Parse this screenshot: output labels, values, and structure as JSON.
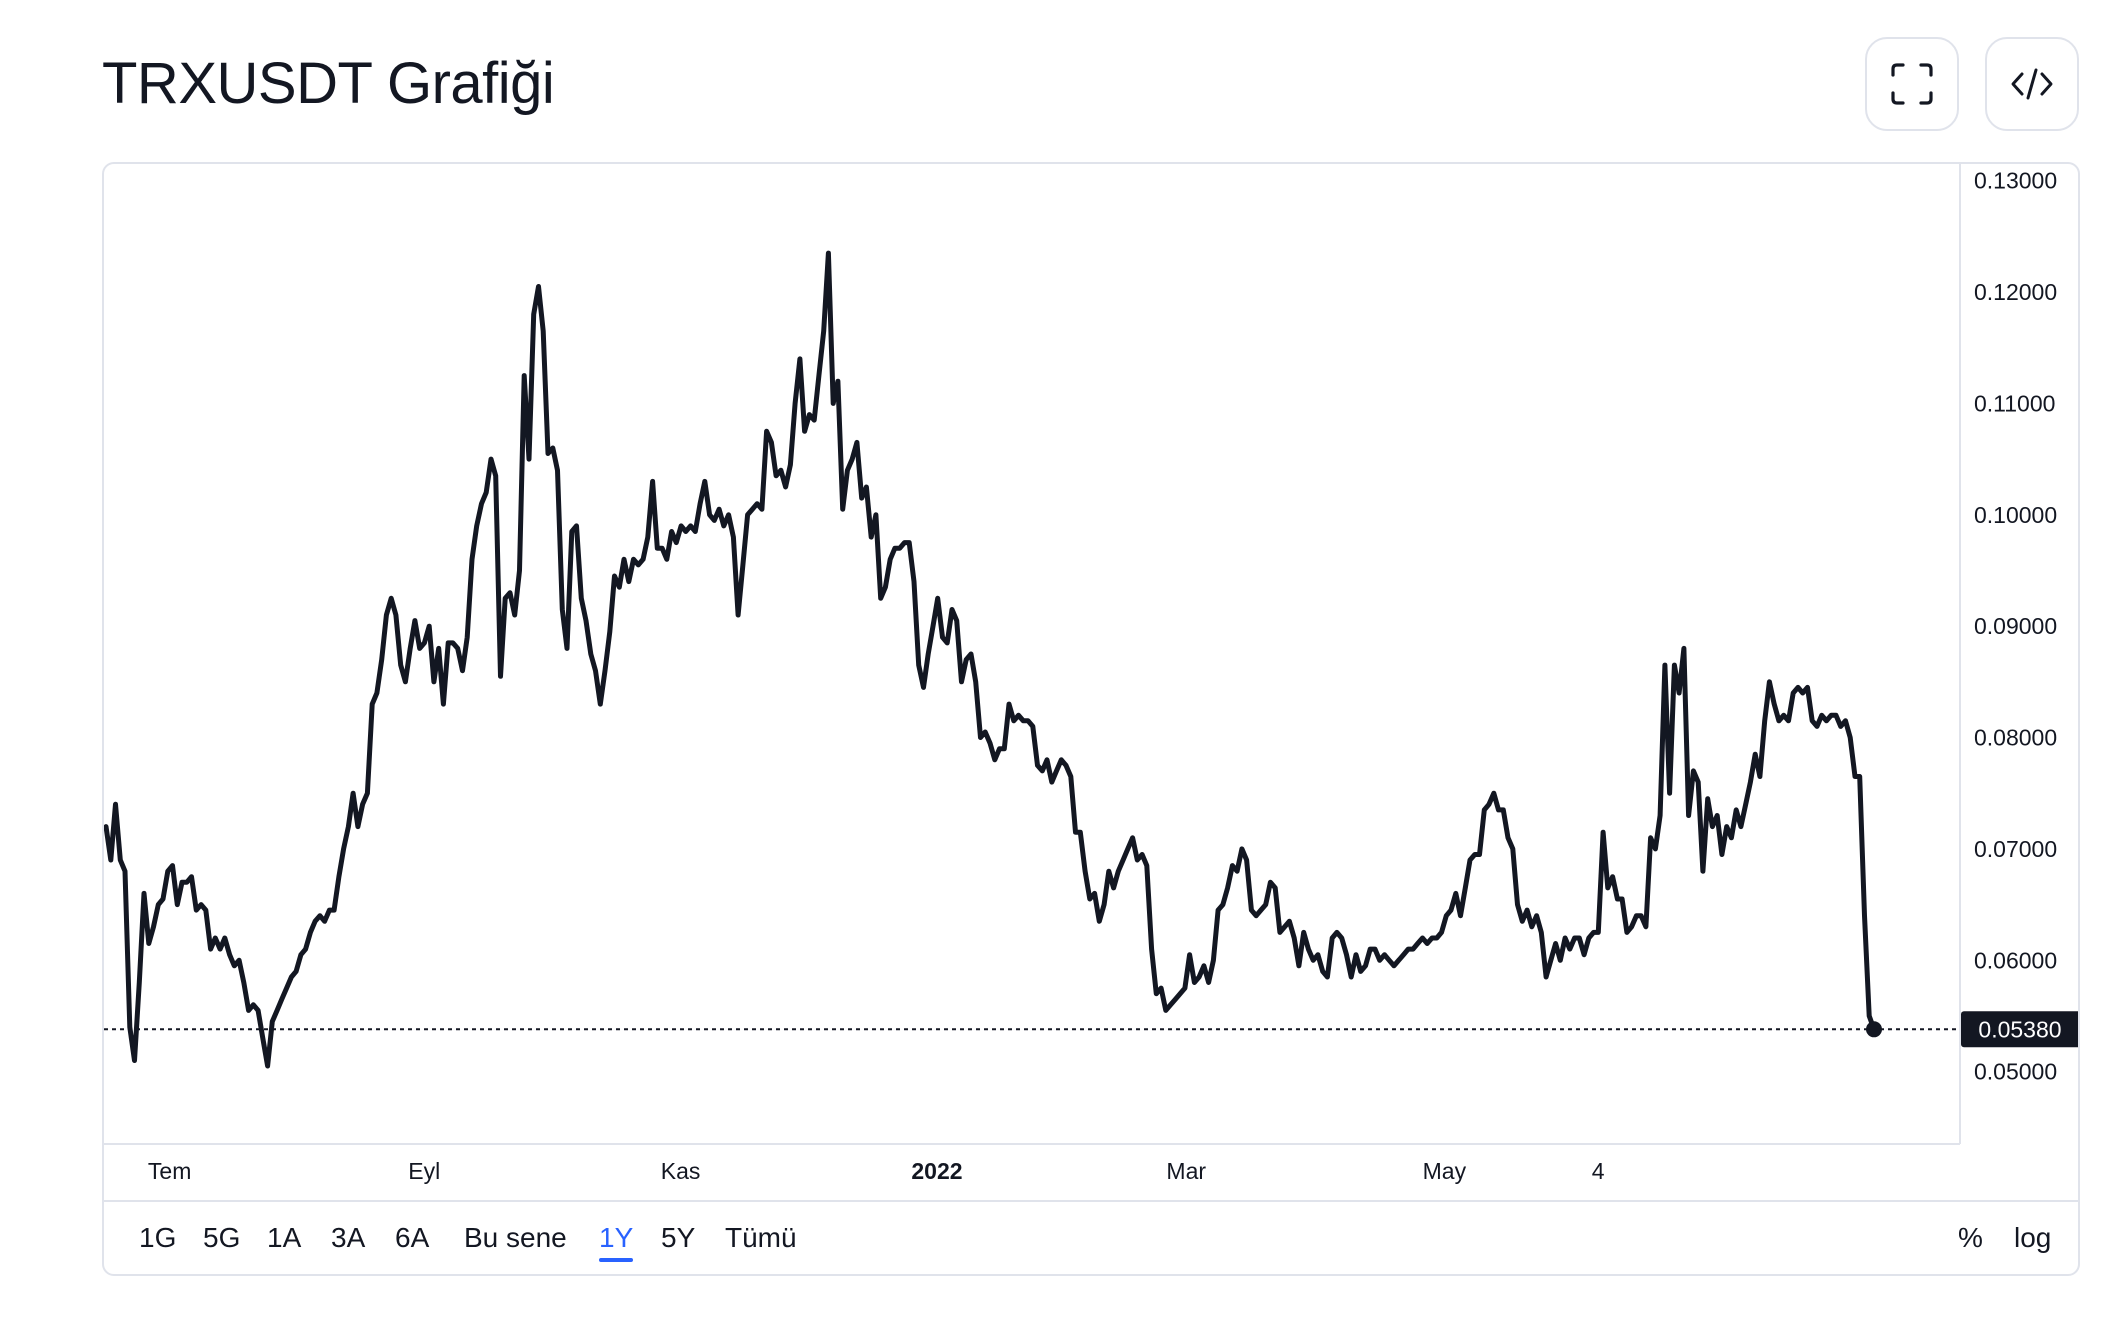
{
  "header": {
    "title": "TRXUSDT Grafiği",
    "fullscreen_icon": "fullscreen-icon",
    "embed_icon": "code-embed-icon"
  },
  "range_bar": {
    "ranges": [
      "1G",
      "5G",
      "1A",
      "3A",
      "6A",
      "Bu sene",
      "1Y",
      "5Y",
      "Tümü"
    ],
    "active": "1Y",
    "percent_label": "%",
    "log_label": "log"
  },
  "colors": {
    "line": "#131722",
    "accent": "#2962ff",
    "price_label_bg": "#131722",
    "border": "#e0e3eb"
  },
  "chart_data": {
    "type": "line",
    "symbol": "TRXUSDT",
    "x_labels": [
      "Tem",
      "Eyl",
      "Kas",
      "2022",
      "Mar",
      "May",
      "4"
    ],
    "x_labels_bold": [
      "2022"
    ],
    "y_ticks": [
      "0.13000",
      "0.12000",
      "0.11000",
      "0.10000",
      "0.09000",
      "0.08000",
      "0.07000",
      "0.06000",
      "0.05000"
    ],
    "ylim": [
      0.0435,
      0.1315
    ],
    "last_price": "0.05380",
    "last_price_value": 0.0538,
    "grid": false,
    "series": [
      {
        "values": [
          0.072,
          0.069,
          0.074,
          0.069,
          0.068,
          0.054,
          0.051,
          0.058,
          0.066,
          0.0615,
          0.063,
          0.065,
          0.0655,
          0.068,
          0.0685,
          0.065,
          0.067,
          0.067,
          0.0675,
          0.0645,
          0.065,
          0.0645,
          0.061,
          0.062,
          0.061,
          0.062,
          0.0605,
          0.0595,
          0.06,
          0.058,
          0.0555,
          0.056,
          0.0555,
          0.053,
          0.0505,
          0.0545,
          0.0555,
          0.0565,
          0.0575,
          0.0585,
          0.059,
          0.0605,
          0.061,
          0.0625,
          0.0635,
          0.064,
          0.0635,
          0.0645,
          0.0645,
          0.0675,
          0.07,
          0.072,
          0.075,
          0.072,
          0.074,
          0.075,
          0.083,
          0.084,
          0.087,
          0.091,
          0.0925,
          0.091,
          0.0865,
          0.085,
          0.088,
          0.0905,
          0.088,
          0.0885,
          0.09,
          0.085,
          0.088,
          0.083,
          0.0885,
          0.0885,
          0.088,
          0.086,
          0.089,
          0.096,
          0.099,
          0.101,
          0.102,
          0.105,
          0.1035,
          0.0855,
          0.0925,
          0.093,
          0.091,
          0.095,
          0.1125,
          0.105,
          0.118,
          0.1205,
          0.1165,
          0.1055,
          0.106,
          0.104,
          0.0915,
          0.088,
          0.0985,
          0.099,
          0.0925,
          0.0905,
          0.0875,
          0.086,
          0.083,
          0.086,
          0.0895,
          0.0945,
          0.0935,
          0.096,
          0.094,
          0.096,
          0.0955,
          0.096,
          0.098,
          0.103,
          0.097,
          0.097,
          0.096,
          0.0985,
          0.0975,
          0.099,
          0.0985,
          0.099,
          0.0985,
          0.101,
          0.103,
          0.1,
          0.0995,
          0.1005,
          0.099,
          0.1,
          0.098,
          0.091,
          0.0955,
          0.1,
          0.1005,
          0.101,
          0.1005,
          0.1075,
          0.1065,
          0.1035,
          0.104,
          0.1025,
          0.1045,
          0.11,
          0.114,
          0.1075,
          0.109,
          0.1085,
          0.1125,
          0.1165,
          0.1235,
          0.11,
          0.112,
          0.1005,
          0.104,
          0.105,
          0.1065,
          0.1015,
          0.1025,
          0.098,
          0.1,
          0.0925,
          0.0935,
          0.096,
          0.097,
          0.097,
          0.0975,
          0.0975,
          0.094,
          0.0865,
          0.0845,
          0.0875,
          0.09,
          0.0925,
          0.089,
          0.0885,
          0.0915,
          0.0905,
          0.085,
          0.087,
          0.0875,
          0.085,
          0.08,
          0.0805,
          0.0795,
          0.078,
          0.079,
          0.079,
          0.083,
          0.0815,
          0.082,
          0.0815,
          0.0815,
          0.081,
          0.0775,
          0.077,
          0.078,
          0.076,
          0.077,
          0.078,
          0.0775,
          0.0765,
          0.0715,
          0.0715,
          0.068,
          0.0655,
          0.066,
          0.0635,
          0.065,
          0.068,
          0.0665,
          0.068,
          0.069,
          0.07,
          0.071,
          0.069,
          0.0695,
          0.0685,
          0.061,
          0.057,
          0.0575,
          0.0555,
          0.056,
          0.0565,
          0.057,
          0.0575,
          0.0605,
          0.058,
          0.0585,
          0.0595,
          0.058,
          0.06,
          0.0645,
          0.065,
          0.0665,
          0.0685,
          0.068,
          0.07,
          0.069,
          0.0645,
          0.064,
          0.0645,
          0.065,
          0.067,
          0.0665,
          0.0625,
          0.063,
          0.0635,
          0.062,
          0.0595,
          0.0625,
          0.061,
          0.06,
          0.0605,
          0.059,
          0.0585,
          0.062,
          0.0625,
          0.062,
          0.0605,
          0.0585,
          0.0605,
          0.059,
          0.0595,
          0.061,
          0.061,
          0.06,
          0.0605,
          0.06,
          0.0595,
          0.06,
          0.0605,
          0.061,
          0.061,
          0.0615,
          0.062,
          0.0615,
          0.062,
          0.062,
          0.0625,
          0.064,
          0.0645,
          0.066,
          0.064,
          0.0665,
          0.069,
          0.0695,
          0.0695,
          0.0735,
          0.074,
          0.075,
          0.0735,
          0.0735,
          0.071,
          0.07,
          0.065,
          0.0635,
          0.0645,
          0.063,
          0.064,
          0.0625,
          0.0585,
          0.06,
          0.0615,
          0.06,
          0.062,
          0.061,
          0.062,
          0.062,
          0.0605,
          0.062,
          0.0625,
          0.0625,
          0.0715,
          0.0665,
          0.0675,
          0.0655,
          0.0655,
          0.0625,
          0.063,
          0.064,
          0.064,
          0.063,
          0.071,
          0.07,
          0.073,
          0.0865,
          0.075,
          0.0865,
          0.084,
          0.088,
          0.073,
          0.077,
          0.076,
          0.068,
          0.0745,
          0.072,
          0.073,
          0.0695,
          0.072,
          0.071,
          0.0735,
          0.072,
          0.074,
          0.076,
          0.0785,
          0.0765,
          0.0815,
          0.085,
          0.083,
          0.0815,
          0.082,
          0.0815,
          0.084,
          0.0845,
          0.084,
          0.0845,
          0.0815,
          0.081,
          0.082,
          0.0815,
          0.082,
          0.082,
          0.081,
          0.0815,
          0.08,
          0.0765,
          0.0765,
          0.064,
          0.055,
          0.0538
        ]
      }
    ]
  }
}
